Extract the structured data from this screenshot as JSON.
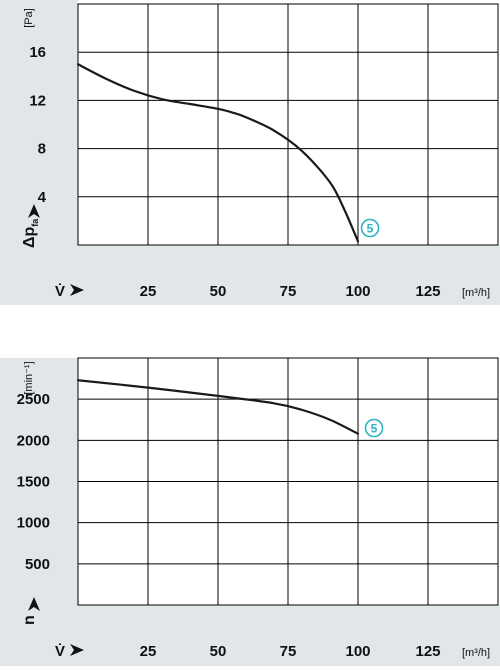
{
  "colors": {
    "panel": "#e1e6e9",
    "grid": "#000000",
    "curve": "#1a1a1a",
    "marker": "#2db3c4"
  },
  "chart_data": [
    {
      "type": "line",
      "xlabel_symbol": "V̇",
      "ylabel_symbol": "Δp",
      "ylabel_subscript": "fa",
      "yunit": "[Pa]",
      "xunit": "[m³/h]",
      "xlim": [
        0,
        150
      ],
      "ylim": [
        0,
        20
      ],
      "x_ticks": [
        25,
        50,
        75,
        100,
        125
      ],
      "y_ticks": [
        4,
        8,
        12,
        16
      ],
      "grid": true,
      "series": [
        {
          "marker_label": "5",
          "x": [
            0,
            10,
            20,
            30,
            40,
            50,
            55,
            60,
            70,
            80,
            90,
            95,
            100
          ],
          "y": [
            15.0,
            13.8,
            12.8,
            12.1,
            11.7,
            11.3,
            11.0,
            10.6,
            9.5,
            7.8,
            5.2,
            3.0,
            0.3
          ]
        }
      ]
    },
    {
      "type": "line",
      "xlabel_symbol": "V̇",
      "ylabel_symbol": "n",
      "ylabel_subscript": "",
      "yunit": "[min⁻¹]",
      "xunit": "[m³/h]",
      "xlim": [
        0,
        150
      ],
      "ylim": [
        0,
        3000
      ],
      "x_ticks": [
        25,
        50,
        75,
        100,
        125
      ],
      "y_ticks": [
        500,
        1000,
        1500,
        2000,
        2500
      ],
      "grid": true,
      "series": [
        {
          "marker_label": "5",
          "x": [
            0,
            25,
            50,
            70,
            80,
            90,
            100
          ],
          "y": [
            2730,
            2640,
            2540,
            2450,
            2370,
            2250,
            2080
          ]
        }
      ]
    }
  ]
}
